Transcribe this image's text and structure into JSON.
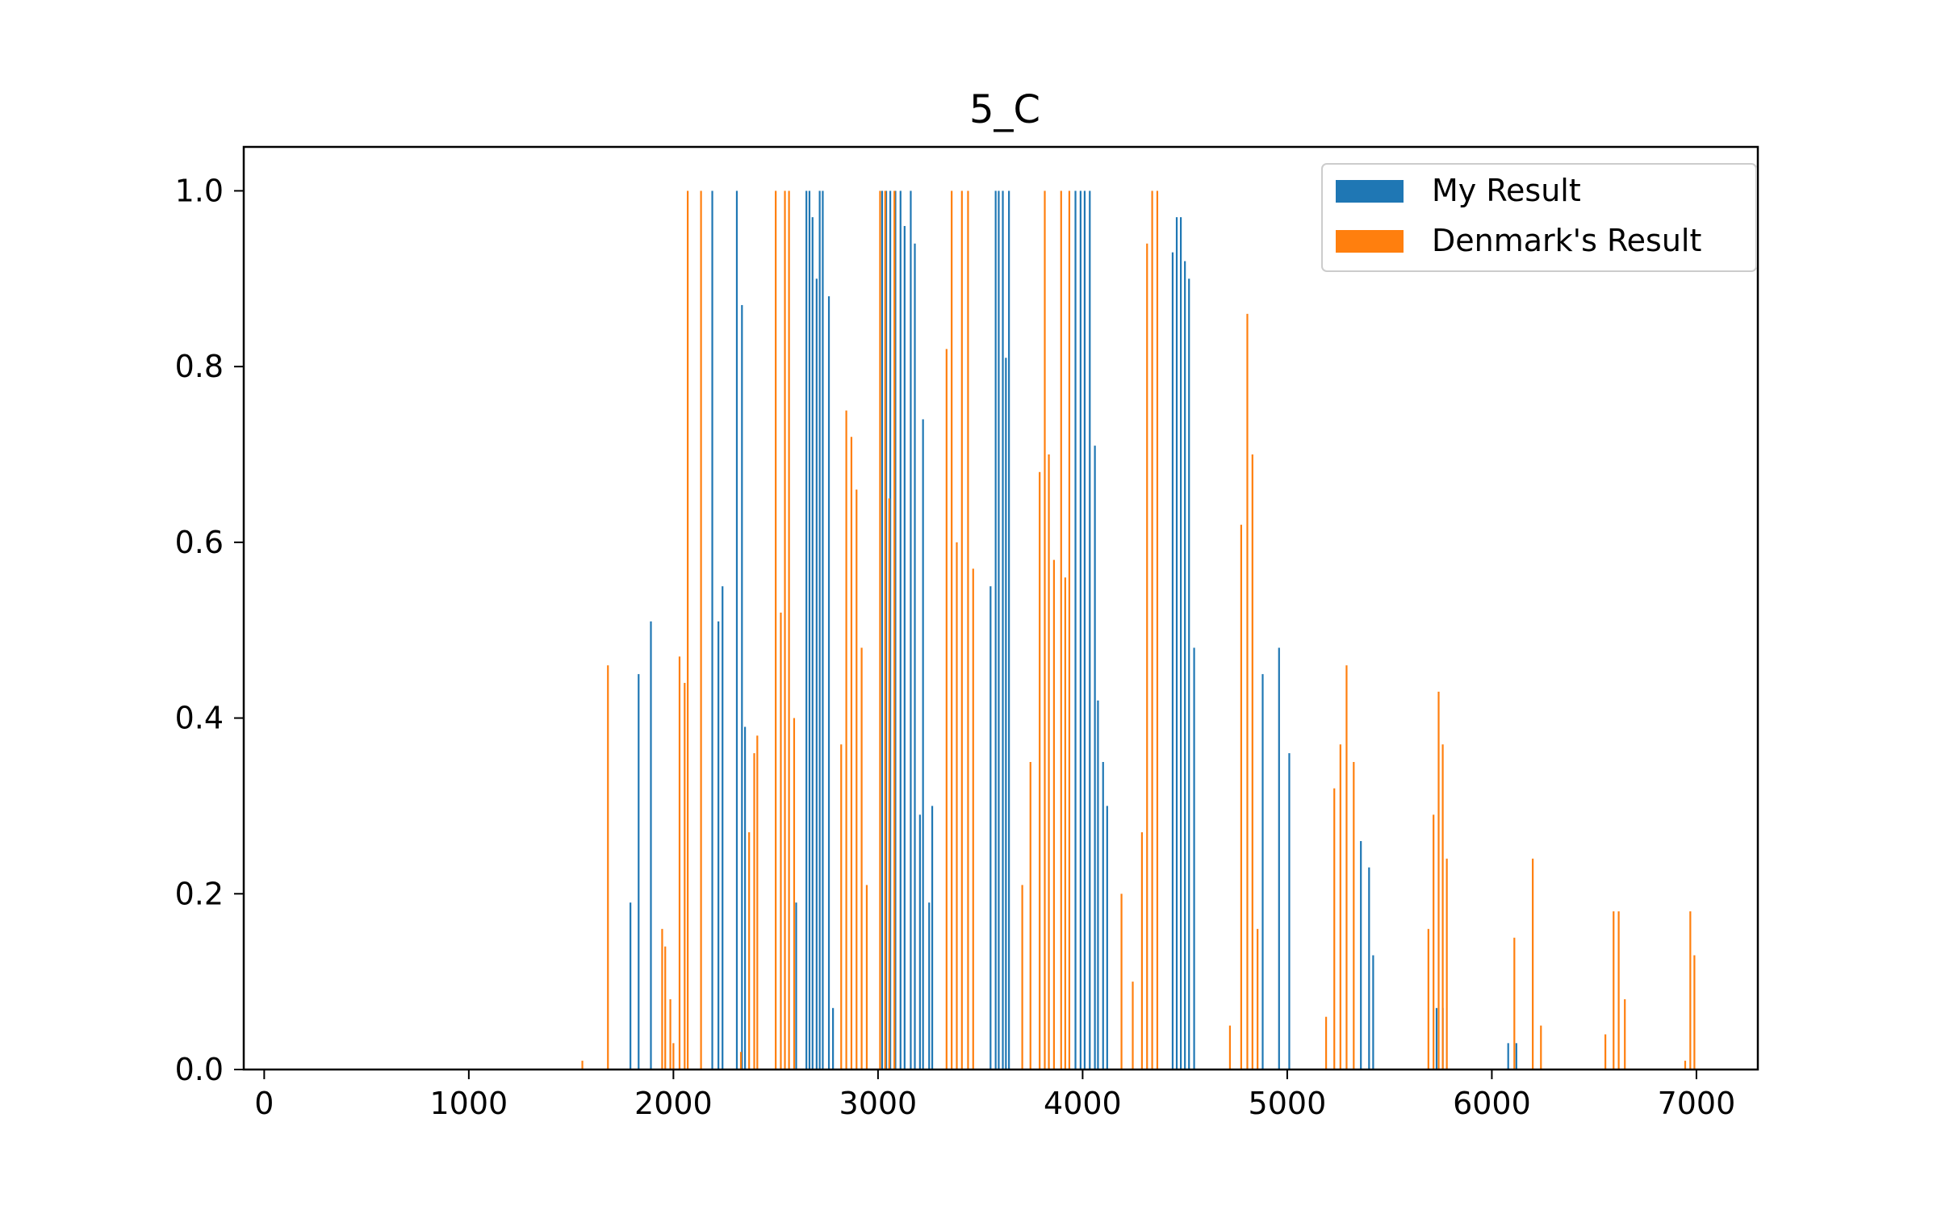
{
  "chart_data": {
    "type": "bar",
    "title": "5_C",
    "xlabel": "",
    "ylabel": "",
    "xlim": [
      -100,
      7300
    ],
    "ylim": [
      0,
      1.05
    ],
    "xticks": [
      0,
      1000,
      2000,
      3000,
      4000,
      5000,
      6000,
      7000
    ],
    "yticks": [
      0.0,
      0.2,
      0.4,
      0.6,
      0.8,
      1.0
    ],
    "grid": false,
    "legend_position": "top-right",
    "series": [
      {
        "name": "My Result",
        "color": "#1f77b4",
        "x": [
          1790,
          1830,
          1890,
          2190,
          2220,
          2240,
          2310,
          2335,
          2350,
          2600,
          2650,
          2665,
          2680,
          2700,
          2715,
          2730,
          2760,
          2780,
          3020,
          3040,
          3060,
          3085,
          3110,
          3130,
          3160,
          3180,
          3205,
          3220,
          3250,
          3265,
          3550,
          3575,
          3590,
          3610,
          3625,
          3640,
          3965,
          3990,
          4010,
          4035,
          4060,
          4075,
          4100,
          4120,
          4440,
          4460,
          4480,
          4500,
          4520,
          4545,
          4880,
          4960,
          5010,
          5360,
          5400,
          5420,
          5730,
          5760,
          6080,
          6120
        ],
        "values": [
          0.19,
          0.45,
          0.51,
          1.0,
          0.51,
          0.55,
          1.0,
          0.87,
          0.39,
          0.19,
          1.0,
          1.0,
          0.97,
          0.9,
          1.0,
          1.0,
          0.88,
          0.07,
          1.0,
          1.0,
          1.0,
          1.0,
          1.0,
          0.96,
          1.0,
          0.94,
          0.29,
          0.74,
          0.19,
          0.3,
          0.55,
          1.0,
          1.0,
          1.0,
          0.81,
          1.0,
          1.0,
          1.0,
          1.0,
          1.0,
          0.71,
          0.42,
          0.35,
          0.3,
          0.93,
          0.97,
          0.97,
          0.92,
          0.9,
          0.48,
          0.45,
          0.48,
          0.36,
          0.26,
          0.23,
          0.13,
          0.07,
          0.07,
          0.03,
          0.03
        ]
      },
      {
        "name": "Denmark's Result",
        "color": "#ff7f0e",
        "x": [
          1555,
          1680,
          1945,
          1960,
          1985,
          2000,
          2030,
          2055,
          2070,
          2135,
          2330,
          2370,
          2395,
          2410,
          2500,
          2525,
          2545,
          2565,
          2590,
          2820,
          2845,
          2870,
          2895,
          2920,
          2945,
          3010,
          3035,
          3055,
          3080,
          3335,
          3360,
          3385,
          3410,
          3440,
          3465,
          3705,
          3745,
          3790,
          3815,
          3835,
          3860,
          3895,
          3915,
          3935,
          4190,
          4245,
          4290,
          4315,
          4340,
          4365,
          4720,
          4775,
          4805,
          4830,
          4855,
          5190,
          5230,
          5260,
          5290,
          5325,
          5690,
          5715,
          5740,
          5760,
          5780,
          6110,
          6200,
          6240,
          6555,
          6595,
          6620,
          6650,
          6945,
          6970,
          6990
        ],
        "values": [
          0.01,
          0.46,
          0.16,
          0.14,
          0.08,
          0.03,
          0.47,
          0.44,
          1.0,
          1.0,
          0.02,
          0.27,
          0.36,
          0.38,
          1.0,
          0.52,
          1.0,
          1.0,
          0.4,
          0.37,
          0.75,
          0.72,
          0.66,
          0.48,
          0.21,
          1.0,
          1.0,
          0.65,
          1.0,
          0.82,
          1.0,
          0.6,
          1.0,
          1.0,
          0.57,
          0.21,
          0.35,
          0.68,
          1.0,
          0.7,
          0.58,
          1.0,
          0.56,
          1.0,
          0.2,
          0.1,
          0.27,
          0.94,
          1.0,
          1.0,
          0.05,
          0.62,
          0.86,
          0.7,
          0.16,
          0.06,
          0.32,
          0.37,
          0.46,
          0.35,
          0.16,
          0.29,
          0.43,
          0.37,
          0.24,
          0.15,
          0.24,
          0.05,
          0.04,
          0.18,
          0.18,
          0.08,
          0.01,
          0.18,
          0.13
        ]
      }
    ]
  }
}
